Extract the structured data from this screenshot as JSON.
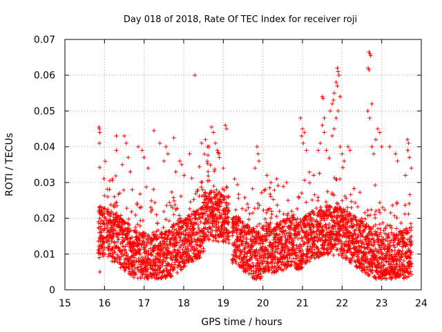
{
  "chart_data": {
    "type": "scatter",
    "title": "Day 018 of 2018, Rate Of TEC Index for receiver roji",
    "xlabel": "GPS time / hours",
    "ylabel": "ROTI / TECUs",
    "xlim": [
      15,
      24
    ],
    "ylim": [
      0,
      0.07
    ],
    "xticks": [
      15,
      16,
      17,
      18,
      19,
      20,
      21,
      22,
      23,
      24
    ],
    "yticks": [
      0,
      0.01,
      0.02,
      0.03,
      0.04,
      0.05,
      0.06,
      0.07
    ],
    "xtick_labels": [
      "15",
      "16",
      "17",
      "18",
      "19",
      "20",
      "21",
      "22",
      "23",
      "24"
    ],
    "ytick_labels": [
      "0",
      "0.01",
      "0.02",
      "0.03",
      "0.04",
      "0.05",
      "0.06",
      "0.07"
    ],
    "grid": true,
    "marker": "plus",
    "marker_color": "#ff0000",
    "series": [
      {
        "name": "ROTI",
        "points": [
          [
            15.86,
            0.0455
          ],
          [
            15.87,
            0.045
          ],
          [
            15.88,
            0.044
          ],
          [
            15.87,
            0.041
          ],
          [
            15.88,
            0.02
          ],
          [
            15.86,
            0.012
          ],
          [
            15.87,
            0.009
          ],
          [
            15.88,
            0.005
          ],
          [
            15.89,
            0.022
          ],
          [
            15.9,
            0.015
          ],
          [
            16.3,
            0.043
          ],
          [
            16.5,
            0.043
          ],
          [
            16.55,
            0.041
          ],
          [
            16.3,
            0.039
          ],
          [
            16.6,
            0.037
          ],
          [
            16.45,
            0.035
          ],
          [
            16.65,
            0.033
          ],
          [
            16.2,
            0.031
          ],
          [
            16.7,
            0.028
          ],
          [
            16.25,
            0.026
          ],
          [
            16.85,
            0.04
          ],
          [
            17.0,
            0.037
          ],
          [
            16.95,
            0.039
          ],
          [
            17.1,
            0.034
          ],
          [
            17.25,
            0.0445
          ],
          [
            17.4,
            0.041
          ],
          [
            17.55,
            0.04
          ],
          [
            17.6,
            0.038
          ],
          [
            17.5,
            0.036
          ],
          [
            17.75,
            0.0425
          ],
          [
            17.9,
            0.036
          ],
          [
            17.95,
            0.035
          ],
          [
            17.8,
            0.033
          ],
          [
            18.15,
            0.038
          ],
          [
            18.28,
            0.06
          ],
          [
            18.45,
            0.041
          ],
          [
            18.55,
            0.042
          ],
          [
            18.6,
            0.04
          ],
          [
            18.7,
            0.0455
          ],
          [
            18.75,
            0.044
          ],
          [
            18.8,
            0.041
          ],
          [
            18.85,
            0.039
          ],
          [
            18.9,
            0.037
          ],
          [
            19.05,
            0.046
          ],
          [
            19.08,
            0.045
          ],
          [
            19.0,
            0.034
          ],
          [
            19.85,
            0.04
          ],
          [
            19.88,
            0.038
          ],
          [
            19.9,
            0.036
          ],
          [
            19.8,
            0.034
          ],
          [
            20.1,
            0.032
          ],
          [
            20.2,
            0.03
          ],
          [
            20.35,
            0.031
          ],
          [
            20.6,
            0.03
          ],
          [
            20.95,
            0.048
          ],
          [
            21.0,
            0.045
          ],
          [
            21.05,
            0.044
          ],
          [
            20.98,
            0.043
          ],
          [
            21.02,
            0.041
          ],
          [
            21.1,
            0.039
          ],
          [
            21.4,
            0.039
          ],
          [
            21.5,
            0.054
          ],
          [
            21.52,
            0.0535
          ],
          [
            21.55,
            0.048
          ],
          [
            21.5,
            0.046
          ],
          [
            21.55,
            0.044
          ],
          [
            21.45,
            0.041
          ],
          [
            21.6,
            0.039
          ],
          [
            21.7,
            0.05
          ],
          [
            21.75,
            0.052
          ],
          [
            21.78,
            0.053
          ],
          [
            21.8,
            0.055
          ],
          [
            21.85,
            0.058
          ],
          [
            21.88,
            0.062
          ],
          [
            21.9,
            0.061
          ],
          [
            21.92,
            0.06
          ],
          [
            21.88,
            0.057
          ],
          [
            21.95,
            0.054
          ],
          [
            21.9,
            0.05
          ],
          [
            21.85,
            0.048
          ],
          [
            21.8,
            0.045
          ],
          [
            21.75,
            0.043
          ],
          [
            21.95,
            0.04
          ],
          [
            22.0,
            0.038
          ],
          [
            22.05,
            0.036
          ],
          [
            22.15,
            0.04
          ],
          [
            22.2,
            0.039
          ],
          [
            22.68,
            0.0665
          ],
          [
            22.7,
            0.066
          ],
          [
            22.72,
            0.0655
          ],
          [
            22.66,
            0.062
          ],
          [
            22.68,
            0.0615
          ],
          [
            22.75,
            0.052
          ],
          [
            22.65,
            0.05
          ],
          [
            22.7,
            0.048
          ],
          [
            22.75,
            0.04
          ],
          [
            22.8,
            0.038
          ],
          [
            22.9,
            0.045
          ],
          [
            22.95,
            0.044
          ],
          [
            22.85,
            0.042
          ],
          [
            23.0,
            0.04
          ],
          [
            23.2,
            0.04
          ],
          [
            23.35,
            0.038
          ],
          [
            23.4,
            0.036
          ],
          [
            23.65,
            0.042
          ],
          [
            23.68,
            0.041
          ],
          [
            23.66,
            0.039
          ],
          [
            23.7,
            0.037
          ],
          [
            23.75,
            0.034
          ],
          [
            23.6,
            0.032
          ]
        ]
      }
    ]
  }
}
